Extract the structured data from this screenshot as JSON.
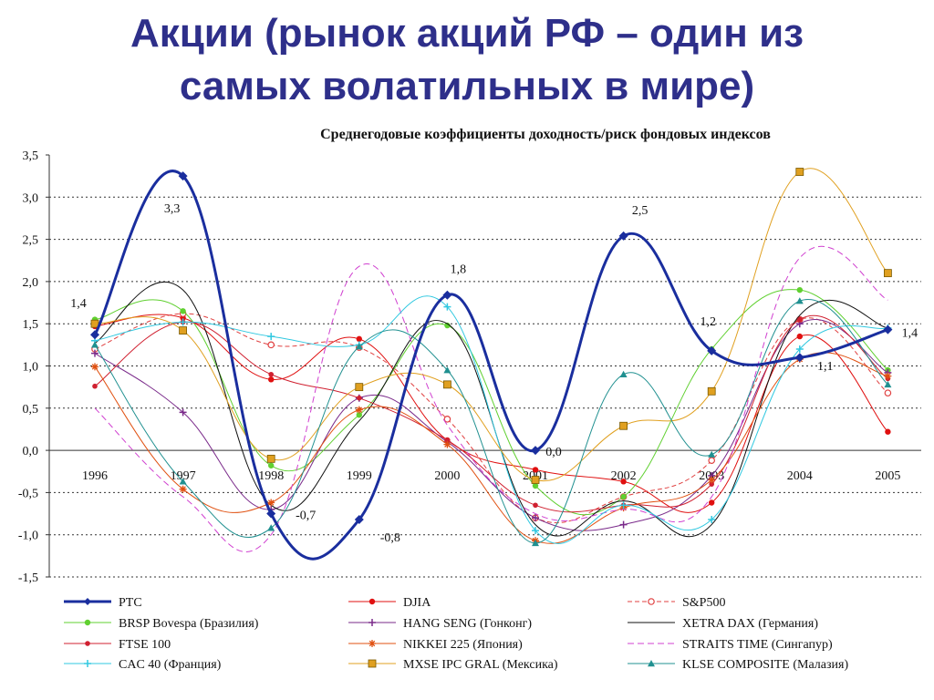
{
  "slide": {
    "title_line1": "Акции (рынок акций РФ – один из",
    "title_line2": "самых волатильных в мире)"
  },
  "chart_data": {
    "type": "line",
    "title": "Среднегодовые коэффициенты доходность/риск фондовых индексов",
    "xlabel": "",
    "ylabel": "",
    "categories": [
      "1996",
      "1997",
      "1998",
      "1999",
      "2000",
      "2001",
      "2002",
      "2003",
      "2004",
      "2005"
    ],
    "y_ticks": [
      "3,5",
      "3,0",
      "2,5",
      "2,0",
      "1,5",
      "1,0",
      "0,5",
      "0,0",
      "-0,5",
      "-1,0",
      "-1,5"
    ],
    "ylim": [
      -1.5,
      3.5
    ],
    "grid": true,
    "legend_position": "bottom",
    "series": [
      {
        "name": "PTC",
        "color": "#1a2e9e",
        "dash": "",
        "marker": "diamond",
        "width": 3,
        "values": [
          1.37,
          3.25,
          -0.75,
          -0.82,
          1.84,
          0.0,
          2.54,
          1.18,
          1.1,
          1.43
        ],
        "labels": [
          "1,4",
          "3,3",
          "-0,7",
          "-0,8",
          "1,8",
          "0,0",
          "2,5",
          "1,2",
          "1,1",
          "1,4"
        ]
      },
      {
        "name": "DJIA",
        "color": "#e01010",
        "dash": "",
        "marker": "circle",
        "width": 1,
        "values": [
          1.47,
          1.57,
          0.84,
          1.32,
          0.12,
          -0.23,
          -0.37,
          -0.62,
          1.35,
          0.22
        ]
      },
      {
        "name": "S&P500",
        "color": "#e04040",
        "dash": "5,3",
        "marker": "circle-open",
        "width": 1,
        "values": [
          1.2,
          1.62,
          1.25,
          1.22,
          0.37,
          -0.8,
          -0.55,
          -0.12,
          1.55,
          0.68
        ]
      },
      {
        "name": "BRSP Bovespa (Бразилия)",
        "color": "#60d030",
        "dash": "",
        "marker": "circle",
        "width": 1,
        "values": [
          1.55,
          1.65,
          -0.18,
          0.42,
          1.48,
          -0.42,
          -0.55,
          1.2,
          1.9,
          0.95
        ]
      },
      {
        "name": "HANG SENG (Гонконг)",
        "color": "#7a2a8a",
        "dash": "",
        "marker": "cross",
        "width": 1,
        "values": [
          1.15,
          0.45,
          -0.7,
          0.62,
          0.1,
          -0.8,
          -0.88,
          -0.3,
          1.5,
          0.92
        ]
      },
      {
        "name": "XETRA DAX (Германия)",
        "color": "#101010",
        "dash": "",
        "marker": "none",
        "width": 1,
        "values": [
          1.27,
          1.9,
          -0.65,
          0.35,
          1.5,
          -0.88,
          -0.6,
          -0.88,
          1.6,
          1.45
        ]
      },
      {
        "name": "FTSE 100",
        "color": "#d02030",
        "dash": "",
        "marker": "star",
        "width": 1,
        "values": [
          0.76,
          1.52,
          0.9,
          0.62,
          0.12,
          -0.65,
          -0.65,
          -0.4,
          1.55,
          0.85
        ]
      },
      {
        "name": "NIKKEI 225 (Япония)",
        "color": "#e05010",
        "dash": "",
        "marker": "asterisk",
        "width": 1,
        "values": [
          0.99,
          -0.46,
          -0.62,
          0.48,
          0.07,
          -1.07,
          -0.68,
          -0.35,
          1.08,
          0.88
        ]
      },
      {
        "name": "STRAITS TIME (Сингапур)",
        "color": "#d040d0",
        "dash": "7,4",
        "marker": "none",
        "width": 1,
        "values": [
          0.5,
          -0.55,
          -1.0,
          2.18,
          0.3,
          -0.75,
          -0.7,
          -0.55,
          2.28,
          1.78
        ]
      },
      {
        "name": "CAC 40 (Франция)",
        "color": "#30c8e0",
        "dash": "",
        "marker": "cross",
        "width": 1,
        "values": [
          1.3,
          1.52,
          1.35,
          1.25,
          1.7,
          -0.95,
          -0.65,
          -0.82,
          1.2,
          1.45
        ]
      },
      {
        "name": "MXSE IPC GRAL (Мексика)",
        "color": "#e0a020",
        "dash": "",
        "marker": "square",
        "width": 1,
        "values": [
          1.5,
          1.42,
          -0.1,
          0.75,
          0.78,
          -0.35,
          0.29,
          0.7,
          3.3,
          2.1
        ]
      },
      {
        "name": "KLSE COMPOSITE (Малазия)",
        "color": "#209090",
        "dash": "",
        "marker": "triangle",
        "width": 1,
        "values": [
          1.25,
          -0.37,
          -0.92,
          1.23,
          0.95,
          -1.1,
          0.9,
          -0.05,
          1.77,
          0.78
        ]
      }
    ]
  }
}
